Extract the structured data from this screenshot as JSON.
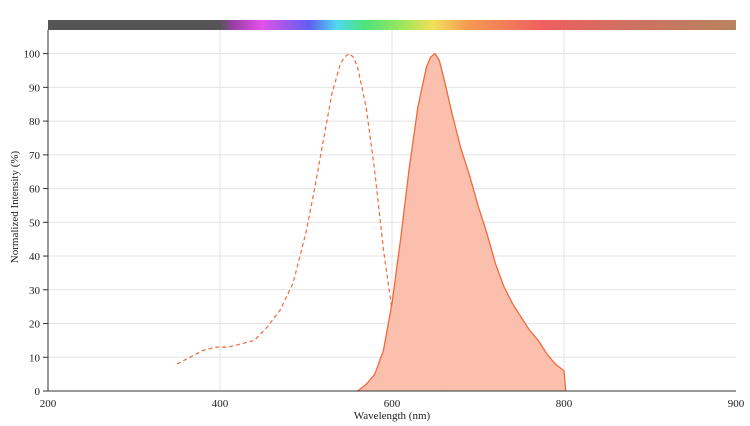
{
  "chart_data": {
    "type": "area",
    "xlabel": "Wavelength (nm)",
    "ylabel": "Normalized Intensity (%)",
    "x_ticks": [
      200,
      400,
      600,
      800,
      900
    ],
    "y_ticks": [
      0,
      10,
      20,
      30,
      40,
      50,
      60,
      70,
      80,
      90,
      100
    ],
    "ylim": [
      0,
      107
    ],
    "grid": true,
    "legend": "none",
    "spectrum_bar": true,
    "series": [
      {
        "style": "dashed",
        "color": "#f06a3c",
        "x": [
          350,
          365,
          380,
          395,
          410,
          425,
          440,
          455,
          470,
          485,
          500,
          510,
          520,
          530,
          540,
          545,
          550,
          555,
          560,
          570,
          580,
          590,
          600,
          610,
          620,
          630,
          640,
          650,
          660
        ],
        "y": [
          8,
          10,
          12,
          13,
          13,
          14,
          15,
          19,
          24,
          32,
          47,
          60,
          74,
          88,
          97,
          99,
          100,
          99,
          96,
          84,
          65,
          42,
          24,
          12,
          6,
          3,
          1.5,
          0.5,
          0
        ]
      },
      {
        "style": "filled",
        "color": "#f06a3c",
        "fill": "#fbbfae",
        "x": [
          560,
          570,
          580,
          590,
          600,
          610,
          620,
          630,
          640,
          645,
          650,
          655,
          660,
          670,
          680,
          690,
          700,
          710,
          720,
          730,
          740,
          750,
          760,
          770,
          780,
          790,
          800,
          801
        ],
        "y": [
          0,
          2,
          5,
          12,
          26,
          45,
          66,
          84,
          96,
          99,
          100,
          98,
          93,
          82,
          72,
          64,
          55,
          47,
          38,
          31,
          26,
          22,
          18,
          15,
          11,
          8,
          6,
          0
        ]
      }
    ]
  }
}
